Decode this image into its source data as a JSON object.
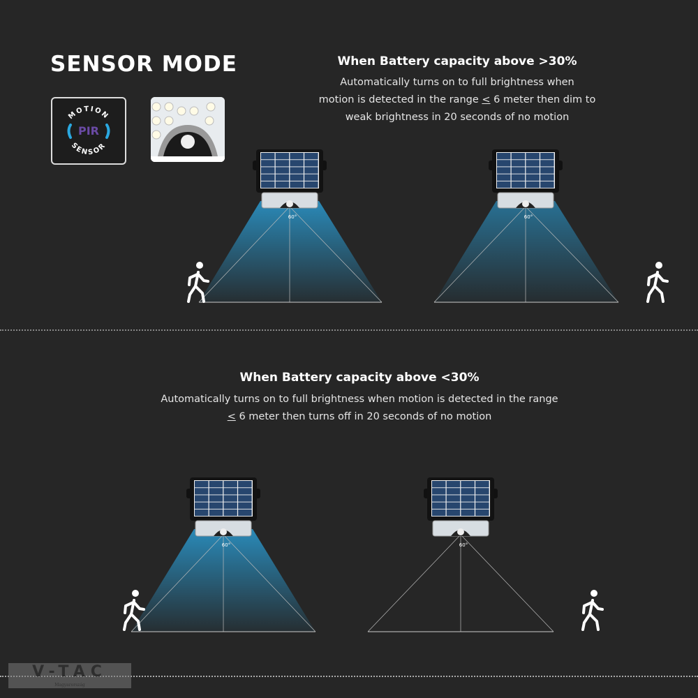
{
  "title": "SENSOR MODE",
  "pir_badge": {
    "top_text": "MOTION",
    "center_text": "PIR",
    "bottom_text": "SENSOR",
    "accent": "#2aa8e0",
    "pir_color": "#6a4aa5"
  },
  "section_high": {
    "heading": "When Battery capacity above >30%",
    "desc_line1": "Automatically turns on to full brightness when",
    "desc_line2_pre": "motion is detected in the range ",
    "desc_line2_u": "<",
    "desc_line2_post": " 6 meter then dim to",
    "desc_line3": "weak brightness in 20 seconds of no motion"
  },
  "section_low": {
    "heading": "When Battery capacity above <30%",
    "desc_line1": "Automatically turns on to full brightness when motion is detected in the range",
    "desc_line2_u": "<",
    "desc_line2_post": " 6 meter then turns off in 20 seconds of no motion"
  },
  "angle_label": "60°",
  "beam_color": "#2a8fc0",
  "lamps": [
    {
      "lit": "full"
    },
    {
      "lit": "dim"
    },
    {
      "lit": "full"
    },
    {
      "lit": "off"
    }
  ],
  "logo": {
    "brand": "V-TAC",
    "sub": "Magyarország"
  }
}
